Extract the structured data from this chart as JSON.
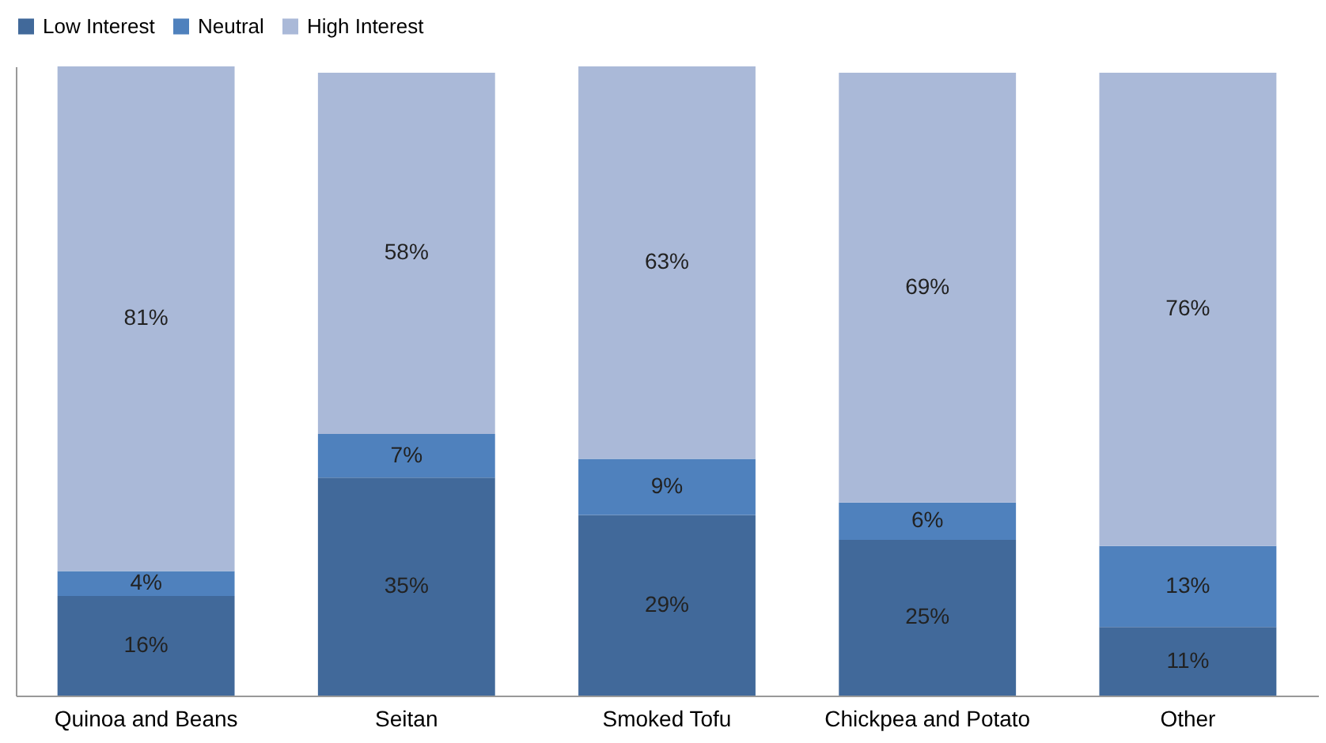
{
  "chart_data": {
    "type": "bar",
    "stacked": true,
    "legend": "top",
    "grid": false,
    "tick_labels": "x",
    "categories": [
      "Quinoa and Beans",
      "Seitan",
      "Smoked Tofu",
      "Chickpea and Potato",
      "Other"
    ],
    "series": [
      {
        "name": "Low Interest",
        "color": "#41699a",
        "values": [
          16,
          35,
          29,
          25,
          11
        ],
        "value_labels": [
          "16%",
          "35%",
          "29%",
          "25%",
          "11%"
        ]
      },
      {
        "name": "Neutral",
        "color": "#4f81bd",
        "values": [
          4,
          7,
          9,
          6,
          13
        ],
        "value_labels": [
          "4%",
          "7%",
          "9%",
          "6%",
          "13%"
        ]
      },
      {
        "name": "High Interest",
        "color": "#aab9d8",
        "values": [
          81,
          58,
          63,
          69,
          76
        ],
        "value_labels": [
          "81%",
          "58%",
          "63%",
          "69%",
          "76%"
        ]
      }
    ]
  }
}
